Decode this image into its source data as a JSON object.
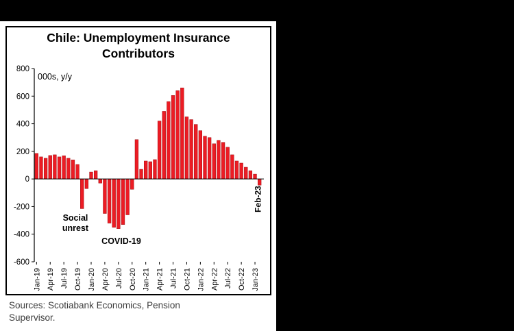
{
  "chart": {
    "title_line1": "Chile: Unemployment Insurance",
    "title_line2": "Contributors",
    "bar_color": "#EC1C24",
    "bar_edge_color": "#9E0B0F",
    "annotations": {
      "social_unrest_line1": "Social",
      "social_unrest_line2": "unrest",
      "covid": "COVID-19",
      "last_bar": "Feb-23"
    },
    "source_line1": "Sources: Scotiabank Economics, Pension",
    "source_line2": "Supervisor."
  },
  "chart_data": {
    "type": "bar",
    "title": "Chile: Unemployment Insurance Contributors",
    "ylabel": "000s, y/y",
    "ylim": [
      -600,
      800
    ],
    "ytick_step": 200,
    "grid": false,
    "legend": false,
    "x_tick_every": 3,
    "x_tick_labels": [
      "Jan-19",
      "Apr-19",
      "Jul-19",
      "Oct-19",
      "Jan-20",
      "Apr-20",
      "Jul-20",
      "Oct-20",
      "Jan-21",
      "Apr-21",
      "Jul-21",
      "Oct-21",
      "Jan-22",
      "Apr-22",
      "Jul-22",
      "Oct-22",
      "Jan-23"
    ],
    "months": [
      "Jan-19",
      "Feb-19",
      "Mar-19",
      "Apr-19",
      "May-19",
      "Jun-19",
      "Jul-19",
      "Aug-19",
      "Sep-19",
      "Oct-19",
      "Nov-19",
      "Dec-19",
      "Jan-20",
      "Feb-20",
      "Mar-20",
      "Apr-20",
      "May-20",
      "Jun-20",
      "Jul-20",
      "Aug-20",
      "Sep-20",
      "Oct-20",
      "Nov-20",
      "Dec-20",
      "Jan-21",
      "Feb-21",
      "Mar-21",
      "Apr-21",
      "May-21",
      "Jun-21",
      "Jul-21",
      "Aug-21",
      "Sep-21",
      "Oct-21",
      "Nov-21",
      "Dec-21",
      "Jan-22",
      "Feb-22",
      "Mar-22",
      "Apr-22",
      "May-22",
      "Jun-22",
      "Jul-22",
      "Aug-22",
      "Sep-22",
      "Oct-22",
      "Nov-22",
      "Dec-22",
      "Jan-23",
      "Feb-23"
    ],
    "values": [
      185,
      160,
      150,
      170,
      175,
      160,
      168,
      150,
      138,
      105,
      -215,
      -70,
      50,
      60,
      -30,
      -250,
      -320,
      -350,
      -360,
      -330,
      -260,
      -75,
      285,
      70,
      130,
      125,
      140,
      420,
      490,
      560,
      605,
      640,
      660,
      450,
      430,
      395,
      350,
      310,
      300,
      255,
      280,
      265,
      230,
      175,
      130,
      115,
      85,
      60,
      35,
      -45
    ]
  }
}
